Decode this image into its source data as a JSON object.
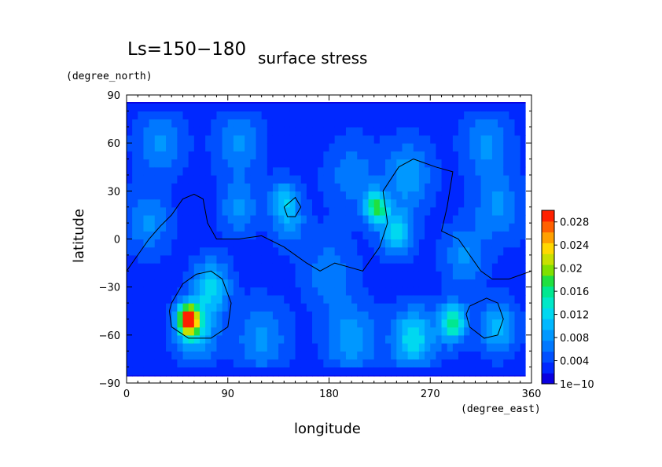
{
  "chart_data": {
    "type": "heatmap",
    "title": "Ls=150−180",
    "subtitle": "surface stress",
    "xlabel": "longitude",
    "ylabel": "latitude",
    "x_unit": "(degree_east)",
    "y_unit": "(degree_north)",
    "xlim": [
      0,
      360
    ],
    "ylim": [
      -90,
      90
    ],
    "x_ticks": [
      "0",
      "90",
      "180",
      "270",
      "360"
    ],
    "y_ticks": [
      "90",
      "60",
      "30",
      "0",
      "−30",
      "−60",
      "−90"
    ],
    "colorbar": {
      "labels": [
        "0.028",
        "0.024",
        "0.02",
        "0.016",
        "0.012",
        "0.008",
        "0.004",
        "1e−10"
      ],
      "min": 0,
      "max": 0.03,
      "colors": [
        "#0a00e0",
        "#0028ff",
        "#0050ff",
        "#0078ff",
        "#0098ff",
        "#00b8ff",
        "#00d8f0",
        "#00e8c8",
        "#00e890",
        "#20e040",
        "#80e000",
        "#c8e000",
        "#ffd800",
        "#ffa000",
        "#ff6000",
        "#ff2000"
      ]
    },
    "background_level": 0.003,
    "features": [
      {
        "lon": 55,
        "lat": -50,
        "value": 0.025,
        "spread": 9
      },
      {
        "lon": 75,
        "lat": -30,
        "value": 0.009,
        "spread": 16
      },
      {
        "lon": 62,
        "lat": -58,
        "value": 0.008,
        "spread": 18
      },
      {
        "lon": 222,
        "lat": 20,
        "value": 0.014,
        "spread": 10
      },
      {
        "lon": 240,
        "lat": 5,
        "value": 0.009,
        "spread": 14
      },
      {
        "lon": 250,
        "lat": 40,
        "value": 0.006,
        "spread": 20
      },
      {
        "lon": 140,
        "lat": 25,
        "value": 0.007,
        "spread": 12
      },
      {
        "lon": 145,
        "lat": 10,
        "value": 0.005,
        "spread": 14
      },
      {
        "lon": 290,
        "lat": -52,
        "value": 0.013,
        "spread": 12
      },
      {
        "lon": 255,
        "lat": -62,
        "value": 0.01,
        "spread": 18
      },
      {
        "lon": 200,
        "lat": -63,
        "value": 0.006,
        "spread": 22
      },
      {
        "lon": 120,
        "lat": -62,
        "value": 0.005,
        "spread": 22
      },
      {
        "lon": 330,
        "lat": -55,
        "value": 0.007,
        "spread": 16
      },
      {
        "lon": 30,
        "lat": 60,
        "value": 0.005,
        "spread": 20
      },
      {
        "lon": 330,
        "lat": 20,
        "value": 0.005,
        "spread": 20
      },
      {
        "lon": 20,
        "lat": 10,
        "value": 0.005,
        "spread": 18
      },
      {
        "lon": 100,
        "lat": 60,
        "value": 0.005,
        "spread": 20
      },
      {
        "lon": 200,
        "lat": 40,
        "value": 0.004,
        "spread": 22
      },
      {
        "lon": 320,
        "lat": 60,
        "value": 0.005,
        "spread": 20
      },
      {
        "lon": 100,
        "lat": 20,
        "value": 0.005,
        "spread": 16
      },
      {
        "lon": 300,
        "lat": -10,
        "value": 0.005,
        "spread": 18
      },
      {
        "lon": 180,
        "lat": -20,
        "value": 0.004,
        "spread": 22
      }
    ],
    "polar_bands": [
      {
        "lat": 88,
        "value": 0.001,
        "spread": 6
      },
      {
        "lat": -88,
        "value": 0.001,
        "spread": 6
      }
    ],
    "contours": [
      {
        "name": "dichotomy-line",
        "points": [
          [
            0,
            -20
          ],
          [
            10,
            -10
          ],
          [
            20,
            0
          ],
          [
            30,
            8
          ],
          [
            40,
            15
          ],
          [
            50,
            25
          ],
          [
            60,
            28
          ],
          [
            68,
            25
          ],
          [
            72,
            10
          ],
          [
            80,
            0
          ],
          [
            100,
            0
          ],
          [
            120,
            2
          ],
          [
            140,
            -5
          ],
          [
            160,
            -15
          ],
          [
            172,
            -20
          ],
          [
            185,
            -15
          ],
          [
            210,
            -20
          ],
          [
            225,
            -5
          ],
          [
            232,
            10
          ],
          [
            228,
            30
          ],
          [
            242,
            45
          ],
          [
            255,
            50
          ],
          [
            275,
            45
          ],
          [
            290,
            42
          ],
          [
            285,
            20
          ],
          [
            280,
            5
          ],
          [
            295,
            0
          ],
          [
            305,
            -10
          ],
          [
            315,
            -20
          ],
          [
            325,
            -25
          ],
          [
            340,
            -25
          ],
          [
            360,
            -20
          ]
        ]
      },
      {
        "name": "hellas-basin",
        "points": [
          [
            40,
            -40
          ],
          [
            50,
            -28
          ],
          [
            62,
            -22
          ],
          [
            75,
            -20
          ],
          [
            85,
            -25
          ],
          [
            93,
            -40
          ],
          [
            90,
            -55
          ],
          [
            75,
            -62
          ],
          [
            55,
            -62
          ],
          [
            40,
            -55
          ],
          [
            38,
            -45
          ],
          [
            40,
            -40
          ]
        ]
      },
      {
        "name": "argyre-basin",
        "points": [
          [
            305,
            -42
          ],
          [
            320,
            -37
          ],
          [
            330,
            -40
          ],
          [
            335,
            -50
          ],
          [
            330,
            -60
          ],
          [
            318,
            -62
          ],
          [
            305,
            -55
          ],
          [
            302,
            -47
          ],
          [
            305,
            -42
          ]
        ]
      },
      {
        "name": "olympus-outline",
        "points": [
          [
            140,
            20
          ],
          [
            150,
            26
          ],
          [
            155,
            20
          ],
          [
            150,
            14
          ],
          [
            143,
            14
          ],
          [
            140,
            20
          ]
        ]
      }
    ]
  }
}
